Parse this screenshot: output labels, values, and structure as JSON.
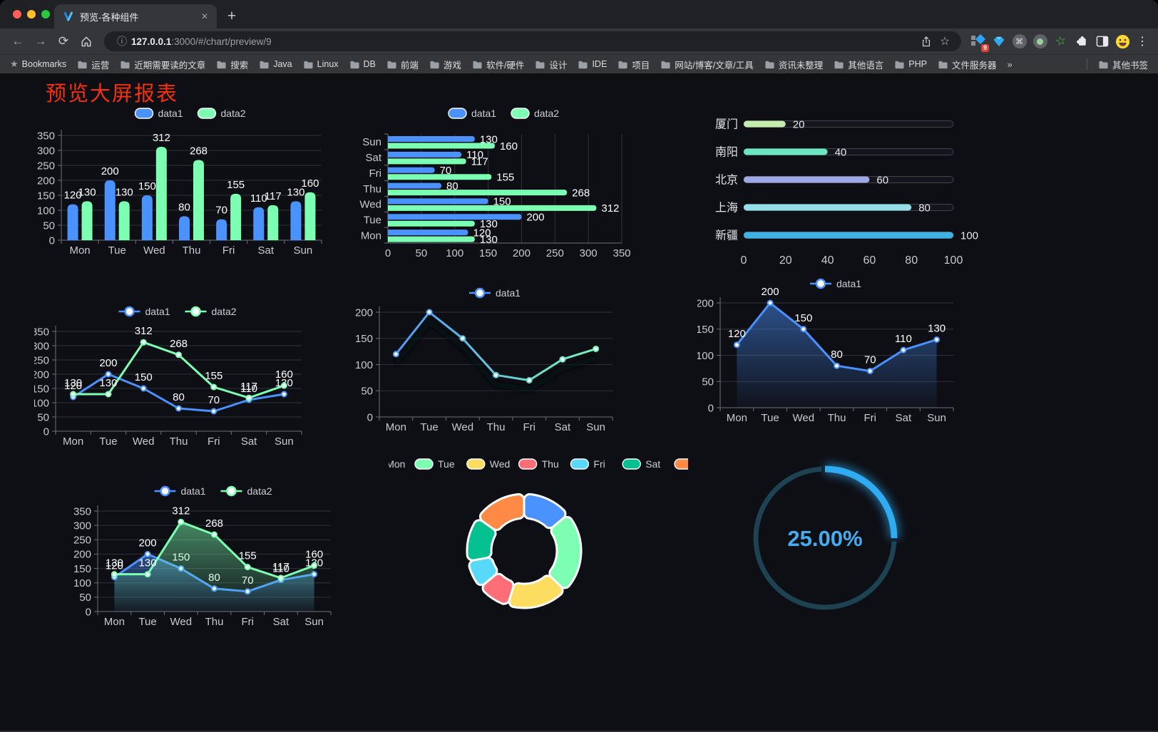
{
  "browser": {
    "tab_title": "预览-各种组件",
    "url_host": "127.0.0.1",
    "url_rest": ":3000/#/chart/preview/9",
    "extension_badge": "9",
    "icons": {
      "close": "✕",
      "new_tab": "+",
      "back": "←",
      "forward": "→",
      "reload": "⟳",
      "info": "ⓘ",
      "star": "☆",
      "menu": "⋮",
      "overflow": "»",
      "bookmarks_star": "★",
      "green_star": "☆",
      "command": "⌘"
    },
    "bookmarks": [
      "Bookmarks",
      "运营",
      "近期需要读的文章",
      "搜索",
      "Java",
      "Linux",
      "DB",
      "前端",
      "游戏",
      "软件/硬件",
      "设计",
      "IDE",
      "项目",
      "网站/博客/文章/工具",
      "资讯未整理",
      "其他语言",
      "PHP",
      "文件服务器",
      "»",
      "其他书签"
    ]
  },
  "page": {
    "title": "预览大屏报表",
    "title_color": "#f5300e",
    "background": "#0e0f15"
  },
  "chart_data": [
    {
      "id": "bar-vertical",
      "type": "bar",
      "categories": [
        "Mon",
        "Tue",
        "Wed",
        "Thu",
        "Fri",
        "Sat",
        "Sun"
      ],
      "series": [
        {
          "name": "data1",
          "color": "#4992ff",
          "values": [
            120,
            200,
            150,
            80,
            70,
            110,
            130
          ]
        },
        {
          "name": "data2",
          "color": "#7cffb2",
          "values": [
            130,
            130,
            312,
            268,
            155,
            117,
            160
          ]
        }
      ],
      "ylim": [
        0,
        350
      ],
      "yticks": [
        0,
        50,
        100,
        150,
        200,
        250,
        300,
        350
      ],
      "value_labels": true,
      "legend_position": "top",
      "grid": true
    },
    {
      "id": "bar-horizontal",
      "type": "bar-horizontal",
      "categories": [
        "Mon",
        "Tue",
        "Wed",
        "Thu",
        "Fri",
        "Sat",
        "Sun"
      ],
      "category_order": "bottom-to-top",
      "series": [
        {
          "name": "data1",
          "color": "#4992ff",
          "values": [
            120,
            200,
            150,
            80,
            70,
            110,
            130
          ]
        },
        {
          "name": "data2",
          "color": "#7cffb2",
          "values": [
            130,
            130,
            312,
            268,
            155,
            117,
            160
          ]
        }
      ],
      "xlim": [
        0,
        350
      ],
      "xticks": [
        0,
        50,
        100,
        150,
        200,
        250,
        300,
        350
      ],
      "value_labels": true,
      "legend_position": "top",
      "grid": true
    },
    {
      "id": "city-progress",
      "type": "progress-bars",
      "items": [
        {
          "label": "厦门",
          "value": 20,
          "color": "#c4ebad"
        },
        {
          "label": "南阳",
          "value": 40,
          "color": "#6be6c1"
        },
        {
          "label": "北京",
          "value": 60,
          "color": "#a0a7e6"
        },
        {
          "label": "上海",
          "value": 80,
          "color": "#96dee8"
        },
        {
          "label": "新疆",
          "value": 100,
          "color": "#3fb1e3"
        }
      ],
      "xlim": [
        0,
        100
      ],
      "xticks": [
        0,
        20,
        40,
        60,
        80,
        100
      ]
    },
    {
      "id": "line-two",
      "type": "line",
      "categories": [
        "Mon",
        "Tue",
        "Wed",
        "Thu",
        "Fri",
        "Sat",
        "Sun"
      ],
      "series": [
        {
          "name": "data1",
          "color": "#4992ff",
          "values": [
            120,
            200,
            150,
            80,
            70,
            110,
            130
          ]
        },
        {
          "name": "data2",
          "color": "#7cffb2",
          "values": [
            130,
            130,
            312,
            268,
            155,
            117,
            160
          ]
        }
      ],
      "ylim": [
        0,
        350
      ],
      "yticks": [
        0,
        50,
        100,
        150,
        200,
        250,
        300,
        350
      ],
      "value_labels": true,
      "symbols": true,
      "legend_position": "top",
      "grid": true
    },
    {
      "id": "line-gradient",
      "type": "line",
      "categories": [
        "Mon",
        "Tue",
        "Wed",
        "Thu",
        "Fri",
        "Sat",
        "Sun"
      ],
      "series": [
        {
          "name": "data1",
          "color": "#4992ff",
          "color_gradient": [
            "#4992ff",
            "#7cffb2"
          ],
          "values": [
            120,
            200,
            150,
            80,
            70,
            110,
            130
          ]
        }
      ],
      "ylim": [
        0,
        200
      ],
      "yticks": [
        0,
        50,
        100,
        150,
        200
      ],
      "value_labels": false,
      "symbols": true,
      "shadow": true,
      "legend_position": "top",
      "grid": true
    },
    {
      "id": "line-area",
      "type": "line",
      "categories": [
        "Mon",
        "Tue",
        "Wed",
        "Thu",
        "Fri",
        "Sat",
        "Sun"
      ],
      "series": [
        {
          "name": "data1",
          "color": "#4992ff",
          "area": true,
          "values": [
            120,
            200,
            150,
            80,
            70,
            110,
            130
          ]
        }
      ],
      "ylim": [
        0,
        200
      ],
      "yticks": [
        0,
        50,
        100,
        150,
        200
      ],
      "value_labels": true,
      "symbols": true,
      "legend_position": "top",
      "grid": true
    },
    {
      "id": "line-area-two",
      "type": "line",
      "categories": [
        "Mon",
        "Tue",
        "Wed",
        "Thu",
        "Fri",
        "Sat",
        "Sun"
      ],
      "series": [
        {
          "name": "data1",
          "color": "#4992ff",
          "area": true,
          "values": [
            120,
            200,
            150,
            80,
            70,
            110,
            130
          ]
        },
        {
          "name": "data2",
          "color": "#7cffb2",
          "area": true,
          "values": [
            130,
            130,
            312,
            268,
            155,
            117,
            160
          ]
        }
      ],
      "ylim": [
        0,
        350
      ],
      "yticks": [
        0,
        50,
        100,
        150,
        200,
        250,
        300,
        350
      ],
      "value_labels": true,
      "symbols": true,
      "legend_position": "top",
      "grid": true
    },
    {
      "id": "donut",
      "type": "pie",
      "donut": true,
      "categories": [
        "Mon",
        "Tue",
        "Wed",
        "Thu",
        "Fri",
        "Sat",
        "Sun"
      ],
      "values": [
        120,
        200,
        150,
        80,
        70,
        110,
        130
      ],
      "colors": [
        "#4992ff",
        "#7cffb2",
        "#fddd60",
        "#ff6e76",
        "#58d9f9",
        "#05c091",
        "#ff8a45"
      ],
      "legend_position": "top"
    },
    {
      "id": "ring",
      "type": "progress-ring",
      "percent": 25,
      "value_label": "25.00%",
      "color": "#2fabf2",
      "track_color": "#1d4251",
      "text_color": "#45aced"
    }
  ]
}
